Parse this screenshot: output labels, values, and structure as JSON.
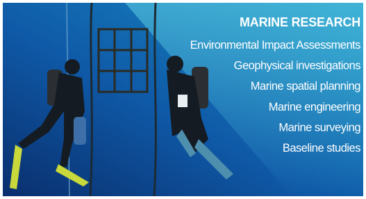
{
  "banner": {
    "title": "MARINE RESEARCH",
    "items": [
      "Environmental Impact Assessments",
      "Geophysical investigations",
      "Marine spatial planning",
      "Marine engineering",
      "Marine surveying",
      "Baseline studies"
    ]
  }
}
